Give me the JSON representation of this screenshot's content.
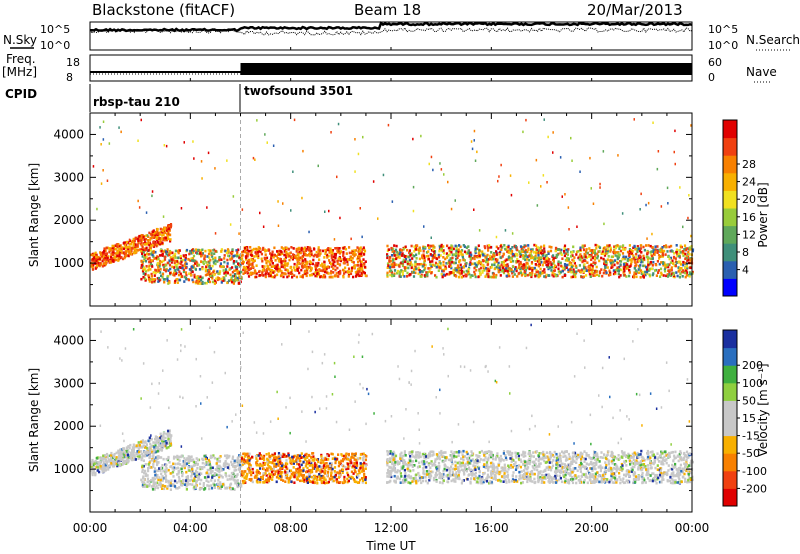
{
  "header": {
    "radar": "Blackstone (fitACF)",
    "beam": "Beam 18",
    "date": "20/Mar/2013"
  },
  "noise_panel": {
    "left_label": "N.Sky",
    "right_label": "N.Search",
    "right_ticks": [
      "10^5",
      "10^0"
    ]
  },
  "freq_panel": {
    "left_label_1": "Freq.",
    "left_label_2": "[MHz]",
    "left_ticks": [
      "18",
      "8"
    ],
    "right_label": "Nave",
    "right_ticks": [
      "60",
      "0"
    ]
  },
  "cpid": {
    "label": "CPID",
    "modes": [
      {
        "name": "rbsp-tau 210",
        "start": 0
      },
      {
        "name": "twofsound 3501",
        "start": 6
      }
    ]
  },
  "power_colorbar": {
    "label": "Power [dB]",
    "tick_labels": [
      "4",
      "8",
      "12",
      "16",
      "20",
      "24",
      "28"
    ],
    "colors": [
      "#0000ff",
      "#2a5fb0",
      "#3f8f7a",
      "#5fa85a",
      "#98cc3a",
      "#f0e020",
      "#f8b000",
      "#f88000",
      "#f04010",
      "#e00000"
    ]
  },
  "velocity_colorbar": {
    "label": "Velocity [m s⁻¹]",
    "tick_labels": [
      "-200",
      "-100",
      "-50",
      "-15",
      "15",
      "50",
      "100",
      "200"
    ],
    "colors": [
      "#e00000",
      "#f04010",
      "#f88000",
      "#f8b000",
      "#c8c8c8",
      "#c8c8c8",
      "#8fcf3f",
      "#3fb03f",
      "#2a6fbf",
      "#1a2f9f"
    ]
  },
  "chart_data": [
    {
      "type": "heatmap",
      "name": "power",
      "xlabel": "",
      "ylabel": "Slant Range [km]",
      "ylim": [
        0,
        4500
      ],
      "xlim": [
        0,
        24
      ],
      "yticks": [
        "1000",
        "2000",
        "3000",
        "4000"
      ],
      "regions": [
        {
          "t0": 0.0,
          "t1": 3.2,
          "r0": 850,
          "r1": 1250,
          "slope": 700,
          "level": "high"
        },
        {
          "t0": 2.0,
          "t1": 6.0,
          "r0": 550,
          "r1": 1350,
          "slope": 0,
          "level": "mixed"
        },
        {
          "t0": 6.0,
          "t1": 11.0,
          "r0": 700,
          "r1": 1400,
          "slope": 0,
          "level": "high"
        },
        {
          "t0": 11.8,
          "t1": 24.0,
          "r0": 700,
          "r1": 1450,
          "slope": 0,
          "level": "mixed"
        }
      ]
    },
    {
      "type": "heatmap",
      "name": "velocity",
      "xlabel": "Time UT",
      "ylabel": "Slant Range [km]",
      "ylim": [
        0,
        4500
      ],
      "xlim": [
        0,
        24
      ],
      "xticks": [
        "00:00",
        "04:00",
        "08:00",
        "12:00",
        "16:00",
        "20:00",
        "00:00"
      ],
      "yticks": [
        "1000",
        "2000",
        "3000",
        "4000"
      ],
      "regions": [
        {
          "t0": 0.0,
          "t1": 3.2,
          "r0": 850,
          "r1": 1250,
          "slope": 700,
          "level": "grey"
        },
        {
          "t0": 2.0,
          "t1": 6.0,
          "r0": 550,
          "r1": 1350,
          "slope": 0,
          "level": "grey"
        },
        {
          "t0": 6.0,
          "t1": 11.0,
          "r0": 700,
          "r1": 1400,
          "slope": 0,
          "level": "orange"
        },
        {
          "t0": 11.8,
          "t1": 24.0,
          "r0": 700,
          "r1": 1450,
          "slope": 0,
          "level": "grey"
        }
      ]
    }
  ]
}
